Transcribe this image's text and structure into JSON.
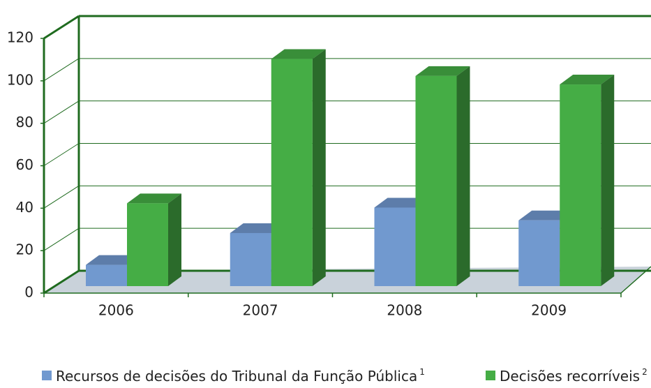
{
  "chart_data": {
    "type": "bar3d",
    "categories": [
      "2006",
      "2007",
      "2008",
      "2009"
    ],
    "series": [
      {
        "name": "Recursos de decisões do Tribunal da Função Pública",
        "note_marker": "1",
        "color": "#7199cf",
        "values": [
          10,
          25,
          37,
          31
        ]
      },
      {
        "name": "Decisões recorríveis",
        "note_marker": "2",
        "color": "#45ad45",
        "values": [
          39,
          107,
          99,
          95
        ]
      }
    ],
    "ylim": [
      0,
      120
    ],
    "yticks": [
      0,
      20,
      40,
      60,
      80,
      100,
      120
    ],
    "grid": true,
    "legend": "bottom"
  }
}
